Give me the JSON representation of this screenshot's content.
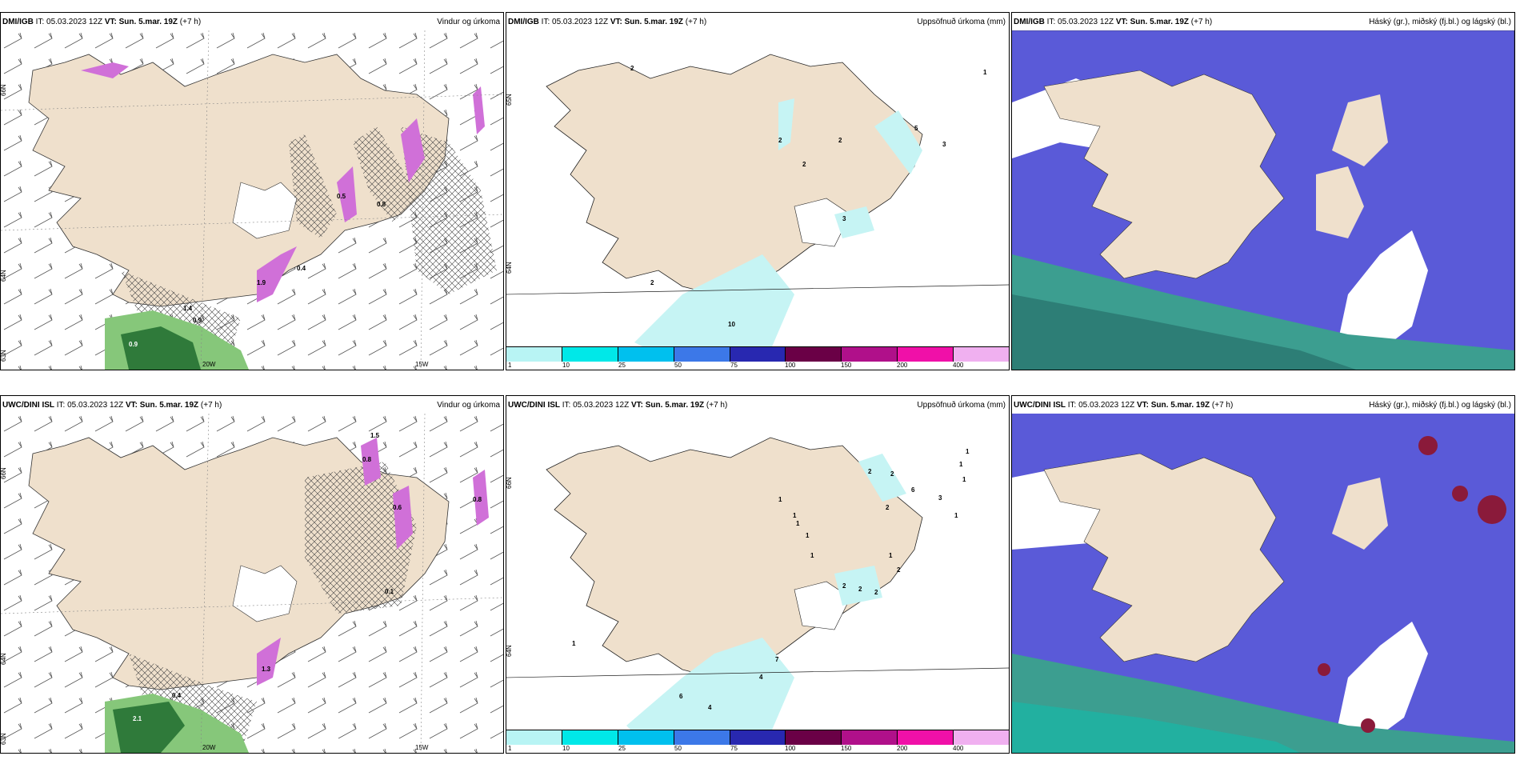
{
  "panels": [
    {
      "model": "DMI/IGB",
      "it": "IT: 05.03.2023 12Z",
      "vt_label": "VT:",
      "vt": "Sun. 5.mar. 19Z",
      "lead": "(+7 h)",
      "title": "Vindur og úrkoma",
      "lat_labels": [
        "66N",
        "64N",
        "63N"
      ],
      "lon_labels": [
        "20W",
        "15W"
      ],
      "precip_labels": [
        "1.4",
        "0.5",
        "0.8",
        "1.9",
        "0.9",
        "0.9",
        "0.4"
      ]
    },
    {
      "model": "DMI/IGB",
      "it": "IT: 05.03.2023 12Z",
      "vt_label": "VT:",
      "vt": "Sun. 5.mar. 19Z",
      "lead": "(+7 h)",
      "title": "Uppsöfnuð úrkoma (mm)",
      "lat_labels": [
        "65N",
        "64N"
      ],
      "precip_labels": [
        "2",
        "2",
        "2",
        "2",
        "5",
        "3",
        "3",
        "2",
        "10",
        "1"
      ]
    },
    {
      "model": "DMI/IGB",
      "it": "IT: 05.03.2023 12Z",
      "vt_label": "VT:",
      "vt": "Sun. 5.mar. 19Z",
      "lead": "(+7 h)",
      "title": "Háský (gr.), miðský (fj.bl.) og lágský (bl.)"
    },
    {
      "model": "UWC/DINI ISL",
      "it": "IT: 05.03.2023 12Z",
      "vt_label": "VT:",
      "vt": "Sun. 5.mar. 19Z",
      "lead": "(+7 h)",
      "title": "Vindur og úrkoma",
      "lat_labels": [
        "66N",
        "64N",
        "63N"
      ],
      "lon_labels": [
        "20W",
        "15W"
      ],
      "precip_labels": [
        "1.5",
        "0.8",
        "0.6",
        "0.1",
        "0.8",
        "0.4",
        "1.3",
        "2.1"
      ]
    },
    {
      "model": "UWC/DINI ISL",
      "it": "IT: 05.03.2023 12Z",
      "vt_label": "VT:",
      "vt": "Sun. 5.mar. 19Z",
      "lead": "(+7 h)",
      "title": "Uppsöfnuð úrkoma (mm)",
      "lat_labels": [
        "66N",
        "64N"
      ],
      "precip_labels": [
        "1",
        "1",
        "1",
        "1",
        "2",
        "2",
        "6",
        "3",
        "2",
        "1",
        "1",
        "1",
        "1",
        "2",
        "2",
        "2",
        "2",
        "1",
        "7",
        "4",
        "6",
        "4",
        "1",
        "1"
      ]
    },
    {
      "model": "UWC/DINI ISL",
      "it": "IT: 05.03.2023 12Z",
      "vt_label": "VT:",
      "vt": "Sun. 5.mar. 19Z",
      "lead": "(+7 h)",
      "title": "Háský (gr.), miðský (fj.bl.) og lágský (bl.)"
    }
  ],
  "colorbar": {
    "ticks": [
      "1",
      "10",
      "25",
      "50",
      "75",
      "100",
      "150",
      "200",
      "400"
    ],
    "colors": [
      "#b8f4f4",
      "#00e8e8",
      "#00c0ee",
      "#3c78e8",
      "#2828b0",
      "#6a0046",
      "#b0108a",
      "#f010a8",
      "#f0b0f0"
    ]
  },
  "colors": {
    "land": "#efe0cc",
    "wind_precip_green": "#86c77a",
    "cloud_high": "#5a5ad8",
    "cloud_low_teal": "#3c9e90",
    "precip_cyan": "#c6f4f4",
    "precip_magenta": "#d070d8"
  }
}
